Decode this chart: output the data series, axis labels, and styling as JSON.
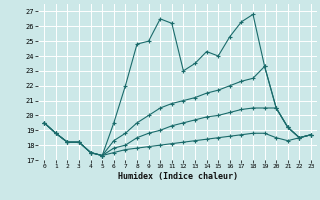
{
  "xlabel": "Humidex (Indice chaleur)",
  "bg_color": "#cce8e8",
  "grid_color": "#ffffff",
  "line_color": "#1a6b6b",
  "xlim": [
    -0.5,
    23.5
  ],
  "ylim": [
    17,
    27.5
  ],
  "yticks": [
    17,
    18,
    19,
    20,
    21,
    22,
    23,
    24,
    25,
    26,
    27
  ],
  "xticks": [
    0,
    1,
    2,
    3,
    4,
    5,
    6,
    7,
    8,
    9,
    10,
    11,
    12,
    13,
    14,
    15,
    16,
    17,
    18,
    19,
    20,
    21,
    22,
    23
  ],
  "series": [
    [
      19.5,
      18.8,
      18.2,
      18.2,
      17.5,
      17.3,
      19.5,
      22.0,
      24.8,
      25.0,
      26.5,
      26.2,
      23.0,
      23.5,
      24.3,
      24.0,
      25.3,
      26.3,
      26.8,
      23.3,
      20.5,
      19.2,
      18.5,
      18.7
    ],
    [
      19.5,
      18.8,
      18.2,
      18.2,
      17.5,
      17.3,
      18.3,
      18.8,
      19.5,
      20.0,
      20.5,
      20.8,
      21.0,
      21.2,
      21.5,
      21.7,
      22.0,
      22.3,
      22.5,
      23.3,
      20.5,
      19.2,
      18.5,
      18.7
    ],
    [
      19.5,
      18.8,
      18.2,
      18.2,
      17.5,
      17.3,
      17.8,
      18.0,
      18.5,
      18.8,
      19.0,
      19.3,
      19.5,
      19.7,
      19.9,
      20.0,
      20.2,
      20.4,
      20.5,
      20.5,
      20.5,
      19.2,
      18.5,
      18.7
    ],
    [
      19.5,
      18.8,
      18.2,
      18.2,
      17.5,
      17.3,
      17.5,
      17.7,
      17.8,
      17.9,
      18.0,
      18.1,
      18.2,
      18.3,
      18.4,
      18.5,
      18.6,
      18.7,
      18.8,
      18.8,
      18.5,
      18.3,
      18.5,
      18.7
    ]
  ]
}
